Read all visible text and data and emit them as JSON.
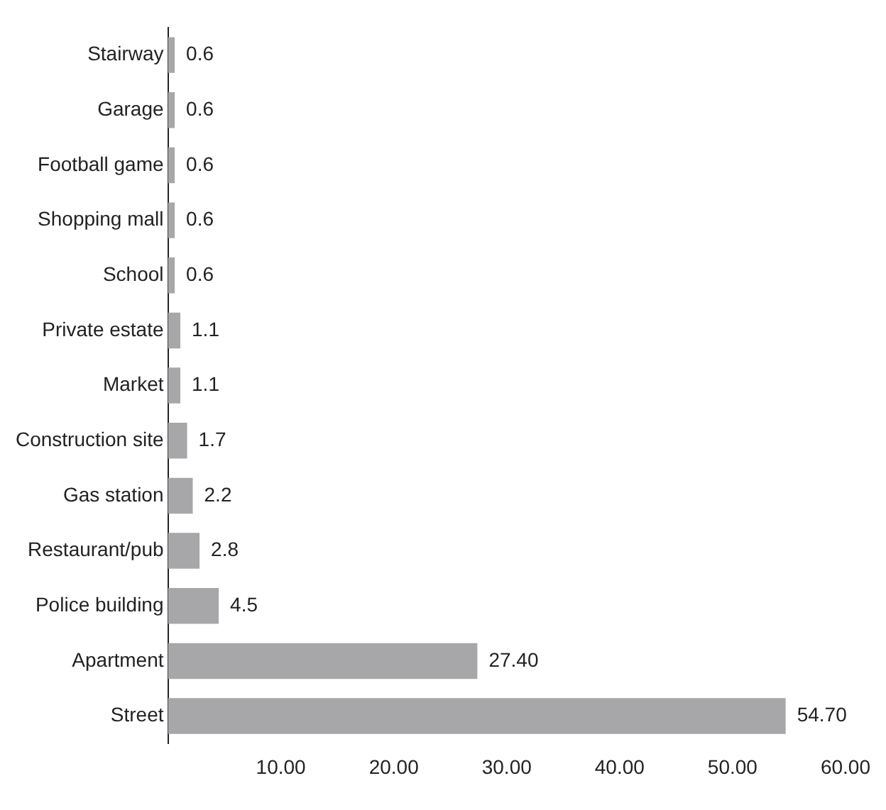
{
  "chart_data": {
    "type": "bar",
    "orientation": "horizontal",
    "categories": [
      "Stairway",
      "Garage",
      "Football game",
      "Shopping mall",
      "School",
      "Private estate",
      "Market",
      "Construction site",
      "Gas station",
      "Restaurant/pub",
      "Police building",
      "Apartment",
      "Street"
    ],
    "values": [
      0.6,
      0.6,
      0.6,
      0.6,
      0.6,
      1.1,
      1.1,
      1.7,
      2.2,
      2.8,
      4.5,
      27.4,
      54.7
    ],
    "value_labels": [
      "0.6",
      "0.6",
      "0.6",
      "0.6",
      "0.6",
      "1.1",
      "1.1",
      "1.7",
      "2.2",
      "2.8",
      "4.5",
      "27.40",
      "54.70"
    ],
    "color": "#a7a7a9",
    "xlim": [
      0,
      60
    ],
    "xticks": [
      {
        "value": 10,
        "label": "10.00"
      },
      {
        "value": 20,
        "label": "20.00"
      },
      {
        "value": 30,
        "label": "30.00"
      },
      {
        "value": 40,
        "label": "40.00"
      },
      {
        "value": 50,
        "label": "50.00"
      },
      {
        "value": 60,
        "label": "60.00"
      }
    ],
    "grid": false,
    "legend": false
  }
}
